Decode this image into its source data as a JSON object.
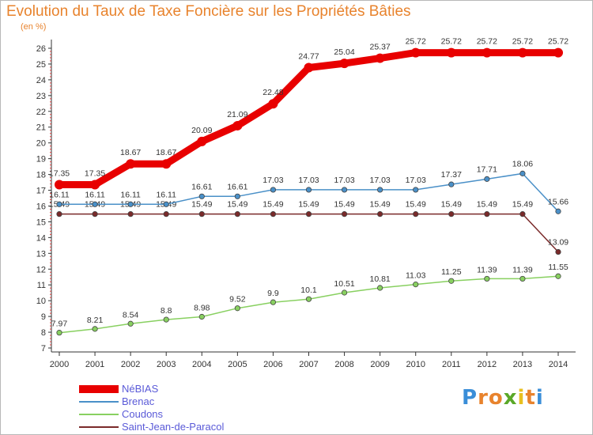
{
  "header": {
    "title": "Evolution du Taux de Taxe Foncière sur les Propriétés Bâties",
    "unit": "(en %)"
  },
  "chart_data": {
    "type": "line",
    "title": "Evolution du Taux de Taxe Foncière sur les Propriétés Bâties",
    "ylabel": "(en %)",
    "xlabel": "",
    "x": [
      "2000",
      "2001",
      "2002",
      "2003",
      "2004",
      "2005",
      "2006",
      "2007",
      "2008",
      "2009",
      "2010",
      "2011",
      "2012",
      "2013",
      "2014"
    ],
    "ylim": [
      7,
      26
    ],
    "yticks": [
      7,
      8,
      9,
      10,
      11,
      12,
      13,
      14,
      15,
      16,
      17,
      18,
      19,
      20,
      21,
      22,
      23,
      24,
      25,
      26
    ],
    "grid": false,
    "legend": "bottom-left",
    "series": [
      {
        "name": "NéBIAS",
        "color": "#e80000",
        "values": [
          17.35,
          17.35,
          18.67,
          18.67,
          20.09,
          21.09,
          22.48,
          24.77,
          25.04,
          25.37,
          25.72,
          25.72,
          25.72,
          25.72,
          25.72
        ],
        "labels": [
          "17.35",
          "17.35",
          "18.67",
          "18.67",
          "20.09",
          "21.09",
          "22.48",
          "24.77",
          "25.04",
          "25.37",
          "25.72",
          "25.72",
          "25.72",
          "25.72",
          "25.72"
        ]
      },
      {
        "name": "Brenac",
        "color": "#4a90c8",
        "values": [
          16.11,
          16.11,
          16.11,
          16.11,
          16.61,
          16.61,
          17.03,
          17.03,
          17.03,
          17.03,
          17.03,
          17.37,
          17.71,
          18.06,
          15.66
        ],
        "labels": [
          "16.11",
          "16.11",
          "16.11",
          "16.11",
          "16.61",
          "16.61",
          "17.03",
          "17.03",
          "17.03",
          "17.03",
          "17.03",
          "17.37",
          "17.71",
          "18.06",
          "15.66"
        ]
      },
      {
        "name": "Coudons",
        "color": "#88d060",
        "values": [
          7.97,
          8.21,
          8.54,
          8.8,
          8.98,
          9.52,
          9.9,
          10.1,
          10.51,
          10.81,
          11.03,
          11.25,
          11.39,
          11.39,
          11.55
        ],
        "labels": [
          "7.97",
          "8.21",
          "8.54",
          "8.8",
          "8.98",
          "9.52",
          "9.9",
          "10.1",
          "10.51",
          "10.81",
          "11.03",
          "11.25",
          "11.39",
          "11.39",
          "11.55"
        ]
      },
      {
        "name": "Saint-Jean-de-Paracol",
        "color": "#7a2a2a",
        "values": [
          15.49,
          15.49,
          15.49,
          15.49,
          15.49,
          15.49,
          15.49,
          15.49,
          15.49,
          15.49,
          15.49,
          15.49,
          15.49,
          15.49,
          13.09
        ],
        "labels": [
          "15.49",
          "15.49",
          "15.49",
          "15.49",
          "15.49",
          "15.49",
          "15.49",
          "15.49",
          "15.49",
          "15.49",
          "15.49",
          "15.49",
          "15.49",
          "15.49",
          "13.09"
        ]
      }
    ]
  },
  "logo": {
    "letters": [
      "P",
      "r",
      "o",
      "x",
      "i",
      "t",
      "i"
    ],
    "colors": [
      "#3a8ed8",
      "#e8832d",
      "#e8832d",
      "#5aa828",
      "#e8c020",
      "#e8832d",
      "#3a8ed8"
    ]
  }
}
